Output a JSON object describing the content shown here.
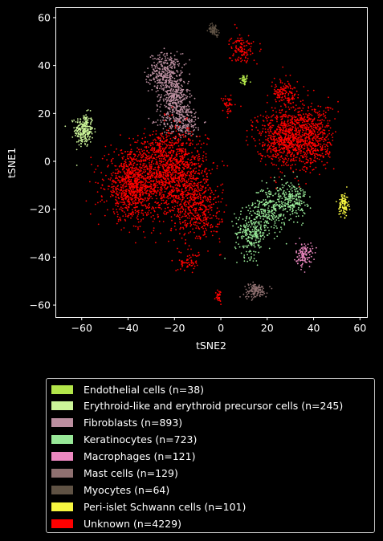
{
  "chart_data": {
    "type": "scatter",
    "xlabel": "tSNE2",
    "ylabel": "tSNE1",
    "xlim": [
      -71,
      63
    ],
    "ylim": [
      -65,
      64
    ],
    "xticks": [
      -60,
      -40,
      -20,
      0,
      20,
      40,
      60
    ],
    "yticks": [
      -60,
      -40,
      -20,
      0,
      20,
      40,
      60
    ],
    "grid": false,
    "legend_position": "below",
    "series": [
      {
        "name": "Endothelial cells (n=38)",
        "color": "#b3e64a",
        "clusters": [
          {
            "cx": 10,
            "cy": 34,
            "sx": 1,
            "sy": 1.2,
            "n": 38
          }
        ]
      },
      {
        "name": "Erythroid-like and erythroid precursor cells (n=245)",
        "color": "#ccf599",
        "clusters": [
          {
            "cx": -59,
            "cy": 13,
            "sx": 2,
            "sy": 3.5,
            "n": 245
          }
        ]
      },
      {
        "name": "Fibroblasts (n=893)",
        "color": "#bc8fa0",
        "clusters": [
          {
            "cx": -24,
            "cy": 37,
            "sx": 3.5,
            "sy": 4,
            "n": 330
          },
          {
            "cx": -20,
            "cy": 27,
            "sx": 3,
            "sy": 4,
            "n": 300
          },
          {
            "cx": -17,
            "cy": 17,
            "sx": 4.5,
            "sy": 3.5,
            "n": 263
          }
        ]
      },
      {
        "name": "Keratinocytes (n=723)",
        "color": "#98e898",
        "clusters": [
          {
            "cx": 13,
            "cy": -30,
            "sx": 3.5,
            "sy": 5,
            "n": 260
          },
          {
            "cx": 21,
            "cy": -20,
            "sx": 3.5,
            "sy": 5,
            "n": 250
          },
          {
            "cx": 31,
            "cy": -16,
            "sx": 3,
            "sy": 4,
            "n": 213
          }
        ]
      },
      {
        "name": "Macrophages (n=121)",
        "color": "#ec88c0",
        "clusters": [
          {
            "cx": 36,
            "cy": -39,
            "sx": 1.8,
            "sy": 2.5,
            "n": 121
          }
        ]
      },
      {
        "name": "Mast cells (n=129)",
        "color": "#8f7070",
        "clusters": [
          {
            "cx": 15,
            "cy": -54,
            "sx": 2.5,
            "sy": 1.5,
            "n": 129
          }
        ]
      },
      {
        "name": "Myocytes (n=64)",
        "color": "#5f5244",
        "clusters": [
          {
            "cx": -3,
            "cy": 55,
            "sx": 1.2,
            "sy": 1.2,
            "n": 64
          }
        ]
      },
      {
        "name": "Peri-islet Schwann cells (n=101)",
        "color": "#f6f640",
        "clusters": [
          {
            "cx": 53,
            "cy": -18,
            "sx": 1,
            "sy": 2.5,
            "n": 101
          }
        ]
      },
      {
        "name": "Unknown (n=4229)",
        "color": "#ff0000",
        "clusters": [
          {
            "cx": -38,
            "cy": -10,
            "sx": 6,
            "sy": 7,
            "n": 950
          },
          {
            "cx": -20,
            "cy": -5,
            "sx": 7,
            "sy": 9,
            "n": 1150
          },
          {
            "cx": -10,
            "cy": -20,
            "sx": 5,
            "sy": 7,
            "n": 400
          },
          {
            "cx": -14,
            "cy": -42,
            "sx": 2.2,
            "sy": 1.8,
            "n": 60
          },
          {
            "cx": 28,
            "cy": 10,
            "sx": 6,
            "sy": 6,
            "n": 800
          },
          {
            "cx": 40,
            "cy": 10,
            "sx": 4.5,
            "sy": 7,
            "n": 450
          },
          {
            "cx": 28,
            "cy": 28,
            "sx": 3,
            "sy": 3,
            "n": 150
          },
          {
            "cx": 9,
            "cy": 47,
            "sx": 2.5,
            "sy": 3,
            "n": 120
          },
          {
            "cx": 3,
            "cy": 24,
            "sx": 1.2,
            "sy": 2,
            "n": 40
          },
          {
            "cx": -1,
            "cy": -56,
            "sx": 0.6,
            "sy": 1.5,
            "n": 30
          },
          {
            "cx": -27,
            "cy": 6,
            "sx": 3,
            "sy": 2.5,
            "n": 79
          }
        ]
      }
    ]
  }
}
